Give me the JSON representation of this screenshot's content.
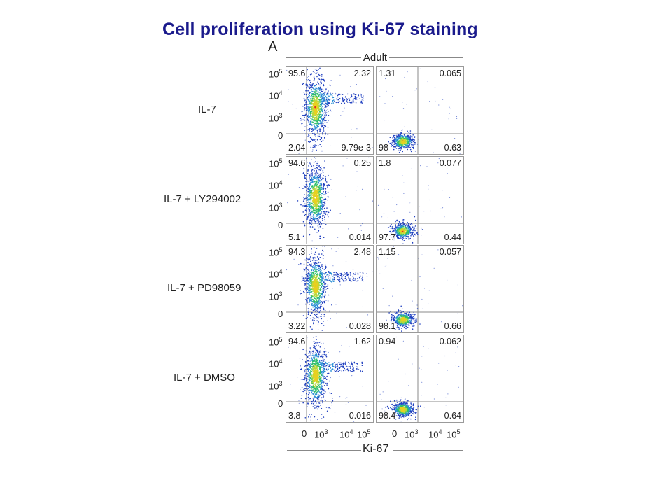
{
  "title": "Cell proliferation using Ki-67 staining",
  "panel_letter": "A",
  "column_header": "Adult",
  "x_axis_title": "Ki-67",
  "x_ticks": [
    "0",
    "10",
    "3",
    "10",
    "4",
    "10",
    "5"
  ],
  "y_ticks": {
    "t5_base": "10",
    "t5_exp": "5",
    "t4_base": "10",
    "t4_exp": "4",
    "t3_base": "10",
    "t3_exp": "3",
    "t0": "0"
  },
  "rows": [
    {
      "label": "IL-7",
      "left": {
        "ul": "95.6",
        "ur": "2.32",
        "ll": "2.04",
        "lr": "9.79e-3"
      },
      "right": {
        "ul": "1.31",
        "ur": "0.065",
        "ll": "98",
        "lr": "0.63"
      }
    },
    {
      "label": "IL-7 + LY294002",
      "left": {
        "ul": "94.6",
        "ur": "0.25",
        "ll": "5.1",
        "lr": "0.014"
      },
      "right": {
        "ul": "1.8",
        "ur": "0.077",
        "ll": "97.7",
        "lr": "0.44"
      }
    },
    {
      "label": "IL-7 + PD98059",
      "left": {
        "ul": "94.3",
        "ur": "2.48",
        "ll": "3.22",
        "lr": "0.028"
      },
      "right": {
        "ul": "1.15",
        "ur": "0.057",
        "ll": "98.1",
        "lr": "0.66"
      }
    },
    {
      "label": "IL-7 + DMSO",
      "left": {
        "ul": "94.6",
        "ur": "1.62",
        "ll": "3.8",
        "lr": "0.016"
      },
      "right": {
        "ul": "0.94",
        "ur": "0.062",
        "ll": "98.4",
        "lr": "0.64"
      }
    }
  ],
  "colors": {
    "title": "#1a1a8c",
    "density_low": "#1f3fbf",
    "density_mid": "#2fbf6a",
    "density_high": "#e8d020",
    "density_peak": "#e03020"
  }
}
